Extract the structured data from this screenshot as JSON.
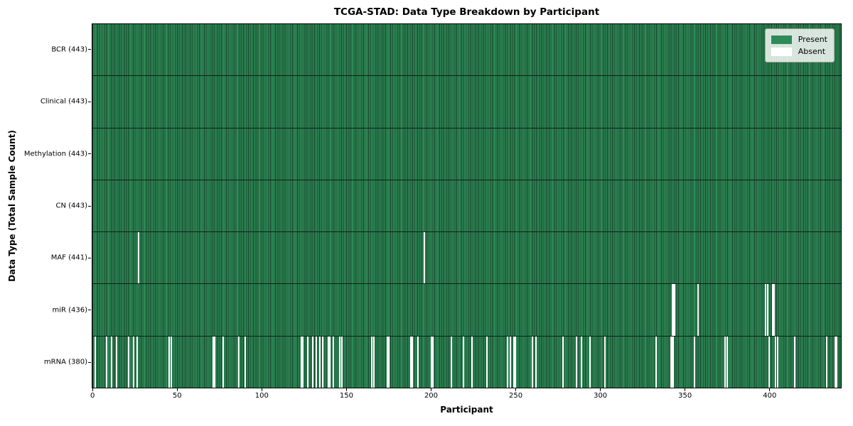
{
  "chart_data": {
    "type": "heatmap",
    "title": "TCGA-STAD: Data Type Breakdown by Participant",
    "xlabel": "Participant",
    "ylabel": "Data Type (Total Sample Count)",
    "x_ticks": [
      0,
      50,
      100,
      150,
      200,
      250,
      300,
      350,
      400
    ],
    "x_range": [
      0,
      443
    ],
    "n_participants": 443,
    "legend_position": "upper right",
    "grid": false,
    "legend_items": [
      {
        "label": "Present",
        "color": "#2e8b57"
      },
      {
        "label": "Absent",
        "color": "#ffffff"
      }
    ],
    "colors": {
      "present": "#2e8b57",
      "absent": "#ffffff",
      "bar_edge": "#16402a"
    },
    "rows": [
      {
        "label": "BCR (443)",
        "data_type": "BCR",
        "total": 443,
        "absent_participants": []
      },
      {
        "label": "Clinical (443)",
        "data_type": "Clinical",
        "total": 443,
        "absent_participants": []
      },
      {
        "label": "Methylation (443)",
        "data_type": "Methylation",
        "total": 443,
        "absent_participants": []
      },
      {
        "label": "CN (443)",
        "data_type": "CN",
        "total": 443,
        "absent_participants": []
      },
      {
        "label": "MAF (441)",
        "data_type": "MAF",
        "total": 441,
        "absent_participants": [
          27,
          196
        ]
      },
      {
        "label": "miR (436)",
        "data_type": "miR",
        "total": 436,
        "absent_participants": [
          343,
          344,
          358,
          398,
          399,
          402,
          403
        ]
      },
      {
        "label": "mRNA (380)",
        "data_type": "mRNA",
        "total": 380,
        "absent_participants": [
          1,
          8,
          11,
          14,
          21,
          24,
          26,
          45,
          46,
          71,
          72,
          77,
          86,
          90,
          123,
          124,
          127,
          130,
          132,
          134,
          136,
          139,
          140,
          142,
          146,
          147,
          165,
          166,
          174,
          175,
          188,
          189,
          192,
          200,
          201,
          212,
          219,
          224,
          233,
          245,
          247,
          249,
          250,
          260,
          262,
          278,
          286,
          289,
          294,
          303,
          333,
          342,
          343,
          356,
          374,
          375,
          400,
          404,
          405,
          415,
          434,
          439,
          440
        ]
      }
    ]
  }
}
